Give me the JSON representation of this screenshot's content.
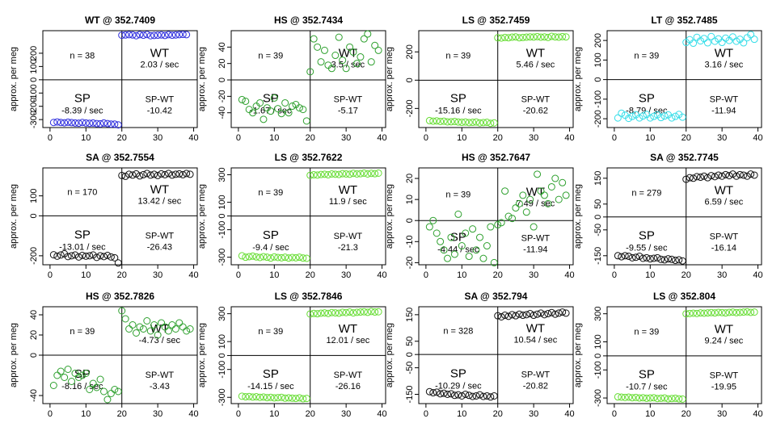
{
  "figure": {
    "ylabel": "approx. per meg",
    "x_ticks": [
      "0",
      "10",
      "20",
      "30",
      "40"
    ]
  },
  "chart_data": [
    {
      "type": "scatter",
      "title": "WT @ 352.7409",
      "color": "#2b2bdd",
      "ylim": [
        -360,
        370
      ],
      "yticks": [
        -300,
        -200,
        -100,
        0,
        100,
        200
      ],
      "n_label": "n = 38",
      "wt_label": "WT",
      "wt_rate": "2.03 / sec",
      "sp_label": "SP",
      "sp_rate": "-8.39 / sec",
      "spwt_label": "SP-WT",
      "spwt_value": "-10.42",
      "sp_x": [
        1,
        2,
        3,
        4,
        5,
        6,
        7,
        8,
        9,
        10,
        11,
        12,
        13,
        14,
        15,
        16,
        17,
        18,
        19
      ],
      "sp_y": [
        -322,
        -318,
        -322,
        -324,
        -320,
        -323,
        -326,
        -327,
        -322,
        -326,
        -328,
        -326,
        -330,
        -332,
        -326,
        -330,
        -334,
        -334,
        -340
      ],
      "wt_x": [
        20,
        21,
        22,
        23,
        24,
        25,
        26,
        27,
        28,
        29,
        30,
        31,
        32,
        33,
        34,
        35,
        36,
        37,
        38
      ],
      "wt_y": [
        336,
        338,
        340,
        338,
        332,
        340,
        336,
        341,
        332,
        334,
        336,
        338,
        334,
        340,
        336,
        338,
        340,
        342,
        340
      ]
    },
    {
      "type": "scatter",
      "title": "HS @ 352.7434",
      "color": "#2ea02e",
      "ylim": [
        -58,
        60
      ],
      "yticks": [
        -40,
        -20,
        0,
        20,
        40
      ],
      "n_label": "n = 39",
      "wt_label": "WT",
      "wt_rate": "3.5 / sec",
      "sp_label": "SP",
      "sp_rate": "-1.67 / sec",
      "spwt_label": "SP-WT",
      "spwt_value": "-5.17",
      "sp_x": [
        1,
        2,
        3,
        4,
        5,
        6,
        7,
        8,
        9,
        10,
        11,
        12,
        13,
        14,
        15,
        16,
        17,
        18,
        19
      ],
      "sp_y": [
        -24,
        -26,
        -36,
        -40,
        -32,
        -28,
        -48,
        -34,
        -38,
        -22,
        -35,
        -41,
        -28,
        -40,
        -32,
        -30,
        -34,
        -36,
        -50
      ],
      "wt_x": [
        20,
        21,
        22,
        23,
        24,
        25,
        26,
        27,
        28,
        29,
        30,
        31,
        32,
        33,
        34,
        35,
        36,
        37,
        38,
        39
      ],
      "wt_y": [
        10,
        50,
        40,
        22,
        36,
        18,
        14,
        30,
        52,
        24,
        14,
        40,
        34,
        20,
        28,
        50,
        56,
        22,
        42,
        36
      ]
    },
    {
      "type": "scatter",
      "title": "LS @ 352.7459",
      "color": "#66dd33",
      "ylim": [
        -335,
        350
      ],
      "yticks": [
        -200,
        0,
        200
      ],
      "n_label": "n = 39",
      "wt_label": "WT",
      "wt_rate": "5.46 / sec",
      "sp_label": "SP",
      "sp_rate": "-15.16 / sec",
      "spwt_label": "SP-WT",
      "spwt_value": "-20.62",
      "sp_x": [
        1,
        2,
        3,
        4,
        5,
        6,
        7,
        8,
        9,
        10,
        11,
        12,
        13,
        14,
        15,
        16,
        17,
        18,
        19
      ],
      "sp_y": [
        -286,
        -290,
        -288,
        -292,
        -290,
        -295,
        -294,
        -292,
        -296,
        -298,
        -296,
        -300,
        -298,
        -296,
        -302,
        -300,
        -298,
        -305,
        -302
      ],
      "wt_x": [
        20,
        21,
        22,
        23,
        24,
        25,
        26,
        27,
        28,
        29,
        30,
        31,
        32,
        33,
        34,
        35,
        36,
        37,
        38,
        39
      ],
      "wt_y": [
        300,
        298,
        302,
        300,
        304,
        306,
        300,
        302,
        304,
        306,
        305,
        308,
        304,
        306,
        302,
        310,
        306,
        304,
        308,
        306
      ]
    },
    {
      "type": "scatter",
      "title": "LT @ 352.7485",
      "color": "#33dde8",
      "ylim": [
        -245,
        250
      ],
      "yticks": [
        -200,
        -100,
        0,
        100,
        200
      ],
      "n_label": "n = 39",
      "wt_label": "WT",
      "wt_rate": "3.16 / sec",
      "sp_label": "SP",
      "sp_rate": "-8.79 / sec",
      "spwt_label": "SP-WT",
      "spwt_value": "-11.94",
      "sp_x": [
        1,
        2,
        3,
        4,
        5,
        6,
        7,
        8,
        9,
        10,
        11,
        12,
        13,
        14,
        15,
        16,
        17,
        18,
        19
      ],
      "sp_y": [
        -196,
        -172,
        -182,
        -198,
        -188,
        -180,
        -196,
        -186,
        -178,
        -196,
        -188,
        -180,
        -194,
        -186,
        -180,
        -196,
        -188,
        -178,
        -192
      ],
      "wt_x": [
        20,
        21,
        22,
        23,
        24,
        25,
        26,
        27,
        28,
        29,
        30,
        31,
        32,
        33,
        34,
        35,
        36,
        37,
        38,
        39
      ],
      "wt_y": [
        190,
        204,
        186,
        216,
        198,
        210,
        188,
        220,
        196,
        208,
        190,
        212,
        200,
        218,
        196,
        206,
        188,
        214,
        230,
        206
      ]
    },
    {
      "type": "scatter",
      "title": "SA @ 352.7554",
      "color": "#111111",
      "ylim": [
        -245,
        240
      ],
      "yticks": [
        -200,
        0,
        100
      ],
      "n_label": "n = 170",
      "wt_label": "WT",
      "wt_rate": "13.42 / sec",
      "sp_label": "SP",
      "sp_rate": "-13.01 / sec",
      "spwt_label": "SP-WT",
      "spwt_value": "-26.43",
      "sp_x": [
        1,
        2,
        3,
        4,
        5,
        6,
        7,
        8,
        9,
        10,
        11,
        12,
        13,
        14,
        15,
        16,
        17,
        18,
        19
      ],
      "sp_y": [
        -195,
        -202,
        -196,
        -190,
        -204,
        -200,
        -196,
        -206,
        -198,
        -202,
        -200,
        -196,
        -208,
        -200,
        -204,
        -198,
        -206,
        -210,
        -236
      ],
      "wt_x": [
        20,
        21,
        22,
        23,
        24,
        25,
        26,
        27,
        28,
        29,
        30,
        31,
        32,
        33,
        34,
        35,
        36,
        37,
        38,
        39
      ],
      "wt_y": [
        202,
        198,
        208,
        204,
        210,
        200,
        206,
        212,
        204,
        208,
        202,
        210,
        206,
        212,
        204,
        208,
        210,
        206,
        212,
        208
      ]
    },
    {
      "type": "scatter",
      "title": "LS @ 352.7622",
      "color": "#66dd33",
      "ylim": [
        -355,
        350
      ],
      "yticks": [
        -300,
        -100,
        0,
        100,
        300
      ],
      "n_label": "n = 39",
      "wt_label": "WT",
      "wt_rate": "11.9 / sec",
      "sp_label": "SP",
      "sp_rate": "-9.4 / sec",
      "spwt_label": "SP-WT",
      "spwt_value": "-21.3",
      "sp_x": [
        1,
        2,
        3,
        4,
        5,
        6,
        7,
        8,
        9,
        10,
        11,
        12,
        13,
        14,
        15,
        16,
        17,
        18,
        19
      ],
      "sp_y": [
        -290,
        -300,
        -296,
        -292,
        -298,
        -302,
        -296,
        -300,
        -306,
        -298,
        -302,
        -304,
        -300,
        -306,
        -302,
        -304,
        -300,
        -306,
        -308
      ],
      "wt_x": [
        20,
        21,
        22,
        23,
        24,
        25,
        26,
        27,
        28,
        29,
        30,
        31,
        32,
        33,
        34,
        35,
        36,
        37,
        38,
        39
      ],
      "wt_y": [
        296,
        300,
        298,
        302,
        304,
        300,
        306,
        304,
        302,
        308,
        306,
        304,
        310,
        306,
        308,
        312,
        306,
        310,
        308,
        312
      ]
    },
    {
      "type": "scatter",
      "title": "HS @ 352.7647",
      "color": "#2ea02e",
      "ylim": [
        -21,
        25
      ],
      "yticks": [
        -20,
        -10,
        0,
        10,
        20
      ],
      "n_label": "n = 39",
      "wt_label": "WT",
      "wt_rate": "7.49 / sec",
      "sp_label": "SP",
      "sp_rate": "-4.44 / sec",
      "spwt_label": "SP-WT",
      "spwt_value": "-11.94",
      "sp_x": [
        1,
        2,
        3,
        4,
        5,
        6,
        7,
        8,
        9,
        10,
        11,
        12,
        13,
        14,
        15,
        16,
        17,
        18,
        19
      ],
      "sp_y": [
        -3,
        0,
        -6,
        -10,
        -14,
        -18,
        -8,
        -16,
        3,
        -12,
        -6,
        -17,
        -4,
        -14,
        -8,
        -18,
        -12,
        -3,
        -20
      ],
      "wt_x": [
        20,
        21,
        22,
        23,
        24,
        25,
        26,
        27,
        28,
        29,
        30,
        31,
        32,
        33,
        34,
        35,
        36,
        37,
        38,
        39
      ],
      "wt_y": [
        -2,
        -1,
        14,
        2,
        1,
        6,
        8,
        12,
        4,
        10,
        -3,
        22,
        14,
        12,
        8,
        16,
        20,
        10,
        18,
        12
      ]
    },
    {
      "type": "scatter",
      "title": "SA @ 352.7745",
      "color": "#111111",
      "ylim": [
        -185,
        190
      ],
      "yticks": [
        -150,
        -50,
        0,
        50,
        150
      ],
      "n_label": "n = 279",
      "wt_label": "WT",
      "wt_rate": "6.59 / sec",
      "sp_label": "SP",
      "sp_rate": "-9.55 / sec",
      "spwt_label": "SP-WT",
      "spwt_value": "-16.14",
      "sp_x": [
        1,
        2,
        3,
        4,
        5,
        6,
        7,
        8,
        9,
        10,
        11,
        12,
        13,
        14,
        15,
        16,
        17,
        18,
        19
      ],
      "sp_y": [
        -150,
        -154,
        -150,
        -152,
        -158,
        -156,
        -152,
        -160,
        -158,
        -162,
        -160,
        -158,
        -164,
        -166,
        -162,
        -164,
        -168,
        -166,
        -170
      ],
      "wt_x": [
        20,
        21,
        22,
        23,
        24,
        25,
        26,
        27,
        28,
        29,
        30,
        31,
        32,
        33,
        34,
        35,
        36,
        37,
        38,
        39
      ],
      "wt_y": [
        146,
        152,
        150,
        156,
        154,
        158,
        152,
        160,
        156,
        162,
        158,
        164,
        160,
        166,
        158,
        164,
        162,
        158,
        166,
        162
      ]
    },
    {
      "type": "scatter",
      "title": "HS @ 352.7826",
      "color": "#2ea02e",
      "ylim": [
        -48,
        48
      ],
      "yticks": [
        -40,
        0,
        20,
        40
      ],
      "n_label": "n = 39",
      "wt_label": "WT",
      "wt_rate": "-4.73 / sec",
      "sp_label": "SP",
      "sp_rate": "-8.16 / sec",
      "spwt_label": "SP-WT",
      "spwt_value": "-3.43",
      "sp_x": [
        1,
        2,
        3,
        4,
        5,
        6,
        7,
        8,
        9,
        10,
        11,
        12,
        13,
        14,
        15,
        16,
        17,
        18,
        19
      ],
      "sp_y": [
        -30,
        -20,
        -16,
        -22,
        -14,
        -26,
        -18,
        -22,
        -20,
        -18,
        -34,
        -28,
        -32,
        -24,
        -36,
        -44,
        -38,
        -34,
        -36
      ],
      "wt_x": [
        20,
        21,
        22,
        23,
        24,
        25,
        26,
        27,
        28,
        29,
        30,
        31,
        32,
        33,
        34,
        35,
        36,
        37,
        38,
        39
      ],
      "wt_y": [
        44,
        36,
        26,
        30,
        22,
        28,
        26,
        34,
        24,
        30,
        20,
        32,
        28,
        24,
        30,
        26,
        32,
        28,
        24,
        26
      ]
    },
    {
      "type": "scatter",
      "title": "LS @ 352.7846",
      "color": "#66dd33",
      "ylim": [
        -345,
        350
      ],
      "yticks": [
        -300,
        -100,
        0,
        100,
        300
      ],
      "n_label": "n = 39",
      "wt_label": "WT",
      "wt_rate": "12.01 / sec",
      "sp_label": "SP",
      "sp_rate": "-14.15 / sec",
      "spwt_label": "SP-WT",
      "spwt_value": "-26.16",
      "sp_x": [
        1,
        2,
        3,
        4,
        5,
        6,
        7,
        8,
        9,
        10,
        11,
        12,
        13,
        14,
        15,
        16,
        17,
        18,
        19
      ],
      "sp_y": [
        -292,
        -296,
        -294,
        -298,
        -296,
        -300,
        -298,
        -302,
        -300,
        -304,
        -302,
        -300,
        -306,
        -304,
        -306,
        -308,
        -304,
        -310,
        -308
      ],
      "wt_x": [
        20,
        21,
        22,
        23,
        24,
        25,
        26,
        27,
        28,
        29,
        30,
        31,
        32,
        33,
        34,
        35,
        36,
        37,
        38,
        39
      ],
      "wt_y": [
        298,
        302,
        300,
        304,
        306,
        302,
        308,
        306,
        304,
        310,
        308,
        312,
        306,
        310,
        312,
        314,
        310,
        316,
        312,
        314
      ]
    },
    {
      "type": "scatter",
      "title": "SA @ 352.794",
      "color": "#111111",
      "ylim": [
        -185,
        180
      ],
      "yticks": [
        -150,
        -50,
        0,
        50,
        150
      ],
      "n_label": "n = 328",
      "wt_label": "WT",
      "wt_rate": "10.54 / sec",
      "sp_label": "SP",
      "sp_rate": "-10.29 / sec",
      "spwt_label": "SP-WT",
      "spwt_value": "-20.82",
      "sp_x": [
        1,
        2,
        3,
        4,
        5,
        6,
        7,
        8,
        9,
        10,
        11,
        12,
        13,
        14,
        15,
        16,
        17,
        18,
        19
      ],
      "sp_y": [
        -140,
        -144,
        -142,
        -148,
        -146,
        -150,
        -148,
        -154,
        -152,
        -156,
        -150,
        -154,
        -158,
        -156,
        -152,
        -158,
        -156,
        -160,
        -156
      ],
      "wt_x": [
        20,
        21,
        22,
        23,
        24,
        25,
        26,
        27,
        28,
        29,
        30,
        31,
        32,
        33,
        34,
        35,
        36,
        37,
        38,
        39
      ],
      "wt_y": [
        146,
        142,
        148,
        144,
        150,
        146,
        152,
        148,
        150,
        154,
        148,
        152,
        156,
        150,
        154,
        158,
        152,
        156,
        160,
        156
      ]
    },
    {
      "type": "scatter",
      "title": "LS @ 352.804",
      "color": "#66dd33",
      "ylim": [
        -340,
        350
      ],
      "yticks": [
        -300,
        -100,
        0,
        100,
        300
      ],
      "n_label": "n = 39",
      "wt_label": "WT",
      "wt_rate": "9.24 / sec",
      "sp_label": "SP",
      "sp_rate": "-10.7 / sec",
      "spwt_label": "SP-WT",
      "spwt_value": "-19.95",
      "sp_x": [
        1,
        2,
        3,
        4,
        5,
        6,
        7,
        8,
        9,
        10,
        11,
        12,
        13,
        14,
        15,
        16,
        17,
        18,
        19
      ],
      "sp_y": [
        -292,
        -294,
        -296,
        -294,
        -298,
        -296,
        -300,
        -298,
        -302,
        -300,
        -298,
        -304,
        -302,
        -300,
        -306,
        -304,
        -302,
        -306,
        -308
      ],
      "wt_x": [
        20,
        21,
        22,
        23,
        24,
        25,
        26,
        27,
        28,
        29,
        30,
        31,
        32,
        33,
        34,
        35,
        36,
        37,
        38,
        39
      ],
      "wt_y": [
        300,
        302,
        304,
        302,
        306,
        304,
        306,
        308,
        306,
        310,
        308,
        306,
        310,
        312,
        308,
        310,
        312,
        314,
        310,
        312
      ]
    }
  ]
}
